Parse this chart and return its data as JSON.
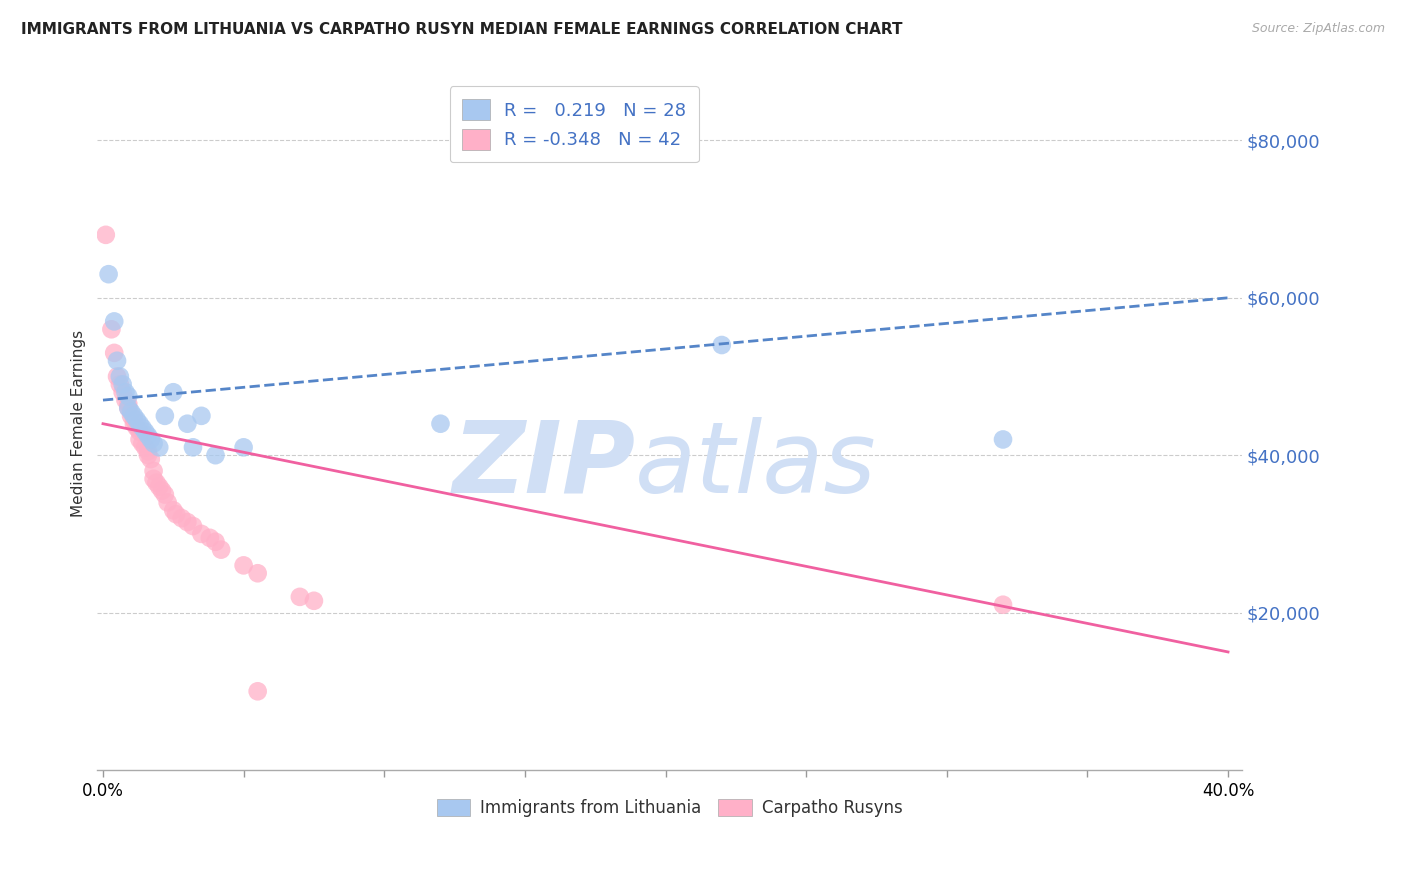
{
  "title": "IMMIGRANTS FROM LITHUANIA VS CARPATHO RUSYN MEDIAN FEMALE EARNINGS CORRELATION CHART",
  "source": "Source: ZipAtlas.com",
  "ylabel": "Median Female Earnings",
  "ytick_labels": [
    "$20,000",
    "$40,000",
    "$60,000",
    "$80,000"
  ],
  "ytick_vals": [
    20000,
    40000,
    60000,
    80000
  ],
  "ylim": [
    0,
    88000
  ],
  "xlim": [
    -0.002,
    0.405
  ],
  "series1_color": "#A8C8F0",
  "series2_color": "#FFB0C8",
  "line1_color": "#5585C8",
  "line2_color": "#F060A0",
  "watermark_zip": "ZIP",
  "watermark_atlas": "atlas",
  "watermark_color": "#D0DFF5",
  "legend_entries": [
    "Immigrants from Lithuania",
    "Carpatho Rusyns"
  ],
  "R1": 0.219,
  "N1": 28,
  "R2": -0.348,
  "N2": 42,
  "line1_x0": 0.0,
  "line1_y0": 47000,
  "line1_x1": 0.4,
  "line1_y1": 60000,
  "line2_x0": 0.0,
  "line2_y0": 44000,
  "line2_x1": 0.4,
  "line2_y1": 15000,
  "scatter1_x": [
    0.002,
    0.004,
    0.005,
    0.006,
    0.007,
    0.008,
    0.009,
    0.009,
    0.01,
    0.011,
    0.012,
    0.013,
    0.014,
    0.015,
    0.016,
    0.017,
    0.018,
    0.02,
    0.022,
    0.025,
    0.03,
    0.032,
    0.035,
    0.04,
    0.05,
    0.12,
    0.22,
    0.32
  ],
  "scatter1_y": [
    63000,
    57000,
    52000,
    50000,
    49000,
    48000,
    47500,
    46000,
    45500,
    45000,
    44500,
    44000,
    43500,
    43000,
    42500,
    42000,
    41500,
    41000,
    45000,
    48000,
    44000,
    41000,
    45000,
    40000,
    41000,
    44000,
    54000,
    42000
  ],
  "scatter2_x": [
    0.001,
    0.003,
    0.004,
    0.005,
    0.006,
    0.007,
    0.008,
    0.009,
    0.009,
    0.01,
    0.011,
    0.011,
    0.012,
    0.013,
    0.013,
    0.014,
    0.015,
    0.016,
    0.016,
    0.017,
    0.018,
    0.018,
    0.019,
    0.02,
    0.021,
    0.022,
    0.023,
    0.025,
    0.026,
    0.028,
    0.03,
    0.032,
    0.035,
    0.038,
    0.04,
    0.042,
    0.05,
    0.055,
    0.07,
    0.075,
    0.32,
    0.055
  ],
  "scatter2_y": [
    68000,
    56000,
    53000,
    50000,
    49000,
    48000,
    47000,
    46500,
    46000,
    45000,
    44500,
    44000,
    43500,
    43000,
    42000,
    41500,
    41000,
    40500,
    40000,
    39500,
    38000,
    37000,
    36500,
    36000,
    35500,
    35000,
    34000,
    33000,
    32500,
    32000,
    31500,
    31000,
    30000,
    29500,
    29000,
    28000,
    26000,
    25000,
    22000,
    21500,
    21000,
    10000
  ]
}
